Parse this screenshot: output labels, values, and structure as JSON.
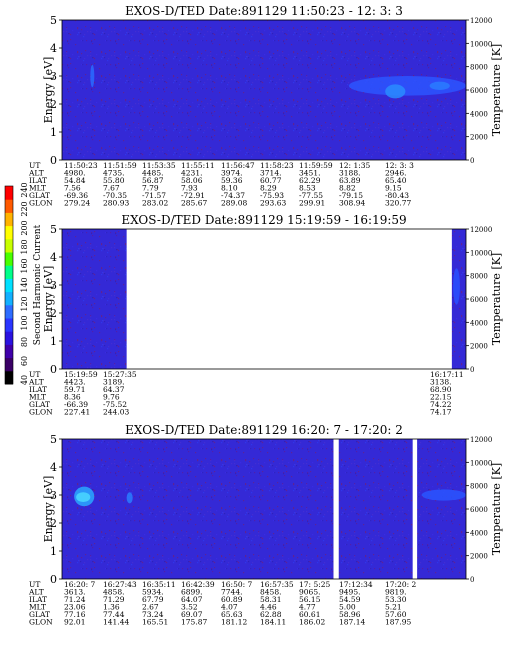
{
  "colorbar": {
    "label": "Second Harmonic Current",
    "ticks": [
      "40",
      "60",
      "80",
      "100",
      "120",
      "140",
      "160",
      "180",
      "200",
      "220",
      "240"
    ],
    "stops": [
      "#000000",
      "#3a0066",
      "#3f00aa",
      "#2a12e0",
      "#2a35ff",
      "#2d6cff",
      "#12b0ff",
      "#00e0ff",
      "#00ff8a",
      "#49ff00",
      "#c8ff00",
      "#ffff00",
      "#ffb300",
      "#ff5a00",
      "#ff0000"
    ]
  },
  "colors": {
    "background": "#3429d6",
    "gap": "#ffffff"
  },
  "chart_data": [
    {
      "type": "heatmap",
      "title": "EXOS-D/TED   Date:891129  11:50:23 - 12: 3: 3",
      "ylabel": "Energy [eV]",
      "ylabel_right": "Temperature [K]",
      "ylim": [
        0,
        5
      ],
      "ylim_right": [
        0,
        12000
      ],
      "yticks": [
        "0",
        "1",
        "2",
        "3",
        "4",
        "5"
      ],
      "yticks_right": [
        "0",
        "2000",
        "4000",
        "6000",
        "8000",
        "10000",
        "12000"
      ],
      "gaps": [],
      "features": [
        {
          "x0": 0.07,
          "x1": 0.08,
          "e0": 2.6,
          "e1": 3.4,
          "color": "#2a6cff"
        },
        {
          "x0": 0.71,
          "x1": 1.0,
          "e0": 2.3,
          "e1": 3.0,
          "color": "#2d55ff"
        },
        {
          "x0": 0.8,
          "x1": 0.85,
          "e0": 2.2,
          "e1": 2.7,
          "color": "#2a8cff"
        },
        {
          "x0": 0.91,
          "x1": 0.96,
          "e0": 2.5,
          "e1": 2.8,
          "color": "#2a7cff"
        }
      ],
      "rows": [
        {
          "label": "UT",
          "values": [
            "11:50:23",
            "11:51:59",
            "11:53:35",
            "11:55:11",
            "11:56:47",
            "11:58:23",
            "11:59:59",
            "12: 1:35",
            "12: 3: 3"
          ]
        },
        {
          "label": "ALT",
          "values": [
            "4980.",
            "4735.",
            "4485.",
            "4231.",
            "3974.",
            "3714.",
            "3451.",
            "3188.",
            "2946."
          ]
        },
        {
          "label": "ILAT",
          "values": [
            "54.84",
            "55.80",
            "56.87",
            "58.06",
            "59.36",
            "60.77",
            "62.29",
            "63.89",
            "65.40"
          ]
        },
        {
          "label": "MLT",
          "values": [
            "7.56",
            "7.67",
            "7.79",
            "7.93",
            "8.10",
            "8.29",
            "8.53",
            "8.82",
            "9.15"
          ]
        },
        {
          "label": "GLAT",
          "values": [
            "-69.36",
            "-70.35",
            "-71.57",
            "-72.91",
            "-74.37",
            "-75.93",
            "-77.55",
            "-79.15",
            "-80.43"
          ]
        },
        {
          "label": "GLON",
          "values": [
            "279.24",
            "280.93",
            "283.02",
            "285.67",
            "289.08",
            "293.63",
            "299.91",
            "308.94",
            "320.77"
          ]
        }
      ]
    },
    {
      "type": "heatmap",
      "title": "EXOS-D/TED   Date:891129  15:19:59 - 16:19:59",
      "ylabel": "Energy [eV]",
      "ylabel_right": "Temperature [K]",
      "ylim": [
        0,
        5
      ],
      "ylim_right": [
        0,
        12000
      ],
      "yticks": [
        "0",
        "1",
        "2",
        "3",
        "4",
        "5"
      ],
      "yticks_right": [
        "0",
        "2000",
        "4000",
        "6000",
        "8000",
        "10000",
        "12000"
      ],
      "gaps": [
        [
          0.16,
          0.965
        ]
      ],
      "features": [
        {
          "x0": 0.968,
          "x1": 0.985,
          "e0": 2.3,
          "e1": 3.6,
          "color": "#2a50ff"
        }
      ],
      "rows": [
        {
          "label": "UT",
          "values": [
            "15:19:59",
            "15:27:35",
            "",
            "",
            "",
            "",
            "",
            "",
            "16:17:11"
          ]
        },
        {
          "label": "ALT",
          "values": [
            "4423.",
            "3189.",
            "",
            "",
            "",
            "",
            "",
            "",
            "3138."
          ]
        },
        {
          "label": "ILAT",
          "values": [
            "59.71",
            "64.37",
            "",
            "",
            "",
            "",
            "",
            "",
            "68.90"
          ]
        },
        {
          "label": "MLT",
          "values": [
            "8.36",
            "9.76",
            "",
            "",
            "",
            "",
            "",
            "",
            "22.15"
          ]
        },
        {
          "label": "GLAT",
          "values": [
            "-66.39",
            "-75.52",
            "",
            "",
            "",
            "",
            "",
            "",
            "74.22"
          ]
        },
        {
          "label": "GLON",
          "values": [
            "227.41",
            "244.03",
            "",
            "",
            "",
            "",
            "",
            "",
            "74.17"
          ]
        }
      ]
    },
    {
      "type": "heatmap",
      "title": "EXOS-D/TED   Date:891129  16:20: 7 - 17:20: 2",
      "ylabel": "Energy [eV]",
      "ylabel_right": "Temperature [K]",
      "ylim": [
        0,
        5
      ],
      "ylim_right": [
        0,
        12000
      ],
      "yticks": [
        "0",
        "1",
        "2",
        "3",
        "4",
        "5"
      ],
      "yticks_right": [
        "0",
        "2000",
        "4000",
        "6000",
        "8000",
        "10000",
        "12000"
      ],
      "gaps": [
        [
          0.672,
          0.685
        ],
        [
          0.868,
          0.879
        ]
      ],
      "features": [
        {
          "x0": 0.03,
          "x1": 0.08,
          "e0": 2.6,
          "e1": 3.3,
          "color": "#2aa8ff"
        },
        {
          "x0": 0.035,
          "x1": 0.07,
          "e0": 2.75,
          "e1": 3.1,
          "color": "#4ad8ff"
        },
        {
          "x0": 0.16,
          "x1": 0.175,
          "e0": 2.7,
          "e1": 3.1,
          "color": "#2a7cff"
        },
        {
          "x0": 0.89,
          "x1": 1.0,
          "e0": 2.8,
          "e1": 3.2,
          "color": "#2a55ff"
        }
      ],
      "rows": [
        {
          "label": "UT",
          "values": [
            "16:20: 7",
            "16:27:43",
            "16:35:11",
            "16:42:39",
            "16:50: 7",
            "16:57:35",
            "17: 5:25",
            "17:12:34",
            "17:20: 2"
          ]
        },
        {
          "label": "ALT",
          "values": [
            "3613.",
            "4858.",
            "5934.",
            "6899.",
            "7744.",
            "8458.",
            "9065.",
            "9495.",
            "9819."
          ]
        },
        {
          "label": "ILAT",
          "values": [
            "71.24",
            "71.29",
            "67.79",
            "64.07",
            "60.89",
            "58.31",
            "56.15",
            "54.59",
            "53.30"
          ]
        },
        {
          "label": "MLT",
          "values": [
            "23.06",
            "1.36",
            "2.67",
            "3.52",
            "4.07",
            "4.46",
            "4.77",
            "5.00",
            "5.21"
          ]
        },
        {
          "label": "GLAT",
          "values": [
            "77.16",
            "77.44",
            "73.24",
            "69.07",
            "65.63",
            "62.88",
            "60.61",
            "58.96",
            "57.60"
          ]
        },
        {
          "label": "GLON",
          "values": [
            "92.01",
            "141.44",
            "165.51",
            "175.87",
            "181.12",
            "184.11",
            "186.02",
            "187.14",
            "187.95"
          ]
        }
      ]
    }
  ]
}
